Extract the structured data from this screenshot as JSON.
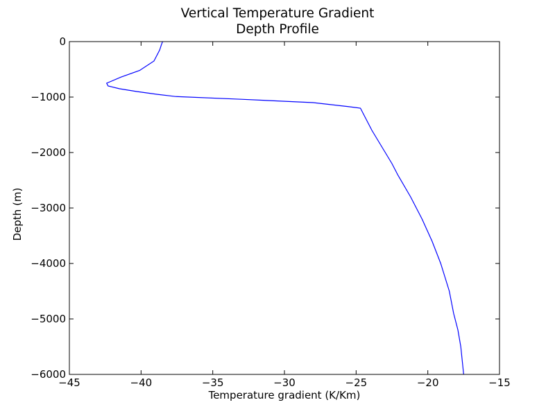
{
  "chart_data": {
    "type": "line",
    "title": "Vertical Temperature Gradient",
    "subtitle": "Depth Profile",
    "xlabel": "Temperature gradient (K/Km)",
    "ylabel": "Depth (m)",
    "xlim": [
      -45,
      -15
    ],
    "ylim": [
      -6000,
      0
    ],
    "xticks": [
      -45,
      -40,
      -35,
      -30,
      -25,
      -20,
      -15
    ],
    "yticks": [
      0,
      -1000,
      -2000,
      -3000,
      -4000,
      -5000,
      -6000
    ],
    "xtick_labels": [
      "−45",
      "−40",
      "−35",
      "−30",
      "−25",
      "−20",
      "−15"
    ],
    "ytick_labels": [
      "0",
      "−1000",
      "−2000",
      "−3000",
      "−4000",
      "−5000",
      "−6000"
    ],
    "grid": false,
    "color": "#0000ff",
    "series": [
      {
        "x": [
          -38.5,
          -38.6,
          -38.7,
          -39.1,
          -40.1,
          -41.4,
          -42.4,
          -42.3,
          -41.5,
          -40.3,
          -38.9,
          -37.6,
          -33.0,
          -28.0,
          -25.6,
          -24.7,
          -24.4,
          -23.9,
          -23.2,
          -22.5,
          -22.1,
          -21.2,
          -20.4,
          -19.7,
          -19.1,
          -18.5,
          -18.2,
          -17.9,
          -17.7,
          -17.6,
          -17.5
        ],
        "y": [
          0,
          -70,
          -150,
          -350,
          -520,
          -640,
          -750,
          -800,
          -850,
          -900,
          -950,
          -990,
          -1040,
          -1100,
          -1170,
          -1200,
          -1350,
          -1600,
          -1900,
          -2200,
          -2400,
          -2800,
          -3200,
          -3600,
          -4000,
          -4500,
          -4900,
          -5200,
          -5500,
          -5750,
          -6000
        ]
      }
    ]
  }
}
